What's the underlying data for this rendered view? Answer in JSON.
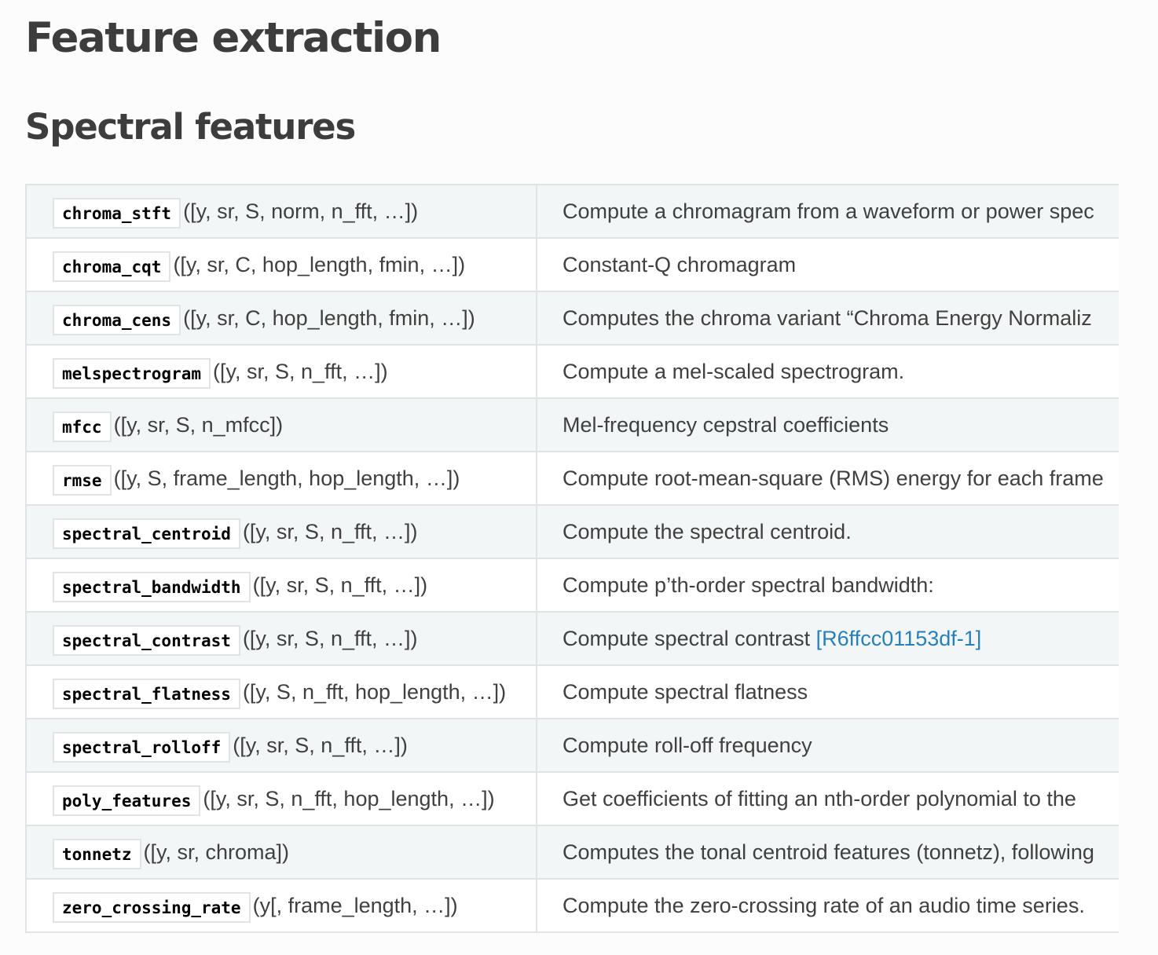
{
  "page_title": "Feature extraction",
  "section_title": "Spectral features",
  "rows": [
    {
      "name": "chroma_stft",
      "args": "([y, sr, S, norm, n_fft, …])",
      "desc": "Compute a chromagram from a waveform or power spec",
      "ref": ""
    },
    {
      "name": "chroma_cqt",
      "args": "([y, sr, C, hop_length, fmin, …])",
      "desc": "Constant-Q chromagram",
      "ref": ""
    },
    {
      "name": "chroma_cens",
      "args": "([y, sr, C, hop_length, fmin, …])",
      "desc": "Computes the chroma variant “Chroma Energy Normaliz",
      "ref": ""
    },
    {
      "name": "melspectrogram",
      "args": "([y, sr, S, n_fft, …])",
      "desc": "Compute a mel-scaled spectrogram.",
      "ref": ""
    },
    {
      "name": "mfcc",
      "args": "([y, sr, S, n_mfcc])",
      "desc": "Mel-frequency cepstral coefficients",
      "ref": ""
    },
    {
      "name": "rmse",
      "args": "([y, S, frame_length, hop_length, …])",
      "desc": "Compute root-mean-square (RMS) energy for each frame",
      "ref": ""
    },
    {
      "name": "spectral_centroid",
      "args": "([y, sr, S, n_fft, …])",
      "desc": "Compute the spectral centroid.",
      "ref": ""
    },
    {
      "name": "spectral_bandwidth",
      "args": "([y, sr, S, n_fft, …])",
      "desc": "Compute p’th-order spectral bandwidth:",
      "ref": ""
    },
    {
      "name": "spectral_contrast",
      "args": "([y, sr, S, n_fft, …])",
      "desc": "Compute spectral contrast ",
      "ref": "[R6ffcc01153df-1]"
    },
    {
      "name": "spectral_flatness",
      "args": "([y, S, n_fft, hop_length, …])",
      "desc": "Compute spectral flatness",
      "ref": ""
    },
    {
      "name": "spectral_rolloff",
      "args": "([y, sr, S, n_fft, …])",
      "desc": "Compute roll-off frequency",
      "ref": ""
    },
    {
      "name": "poly_features",
      "args": "([y, sr, S, n_fft, hop_length, …])",
      "desc": "Get coefficients of fitting an nth-order polynomial to the",
      "ref": ""
    },
    {
      "name": "tonnetz",
      "args": "([y, sr, chroma])",
      "desc": "Computes the tonal centroid features (tonnetz), following",
      "ref": ""
    },
    {
      "name": "zero_crossing_rate",
      "args": "(y[, frame_length, …])",
      "desc": "Compute the zero-crossing rate of an audio time series.",
      "ref": ""
    }
  ]
}
